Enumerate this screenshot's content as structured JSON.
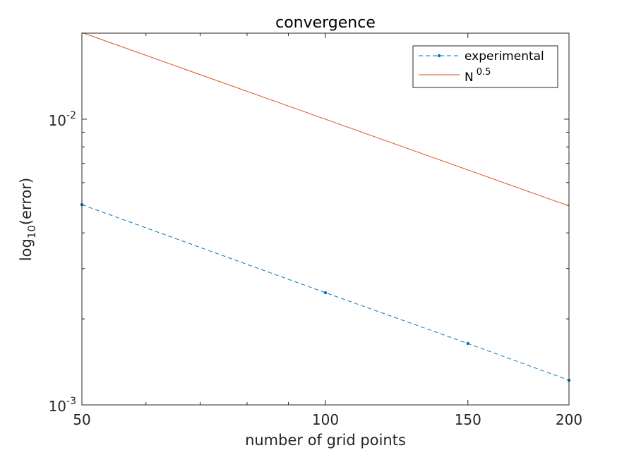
{
  "chart_data": {
    "type": "line",
    "title": "convergence",
    "xlabel": "number of grid points",
    "ylabel_base": "log",
    "ylabel_sub": "10",
    "ylabel_tail": "(error)",
    "xscale": "log",
    "yscale": "log",
    "xlim": [
      50,
      200
    ],
    "ylim": [
      0.001,
      0.02
    ],
    "xticks": [
      50,
      100,
      150,
      200
    ],
    "xtick_labels": [
      "50",
      "100",
      "150",
      "200"
    ],
    "yticks": [
      0.001,
      0.01
    ],
    "ytick_labels": [
      {
        "base": "10",
        "exp": "-3"
      },
      {
        "base": "10",
        "exp": "-2"
      }
    ],
    "grid": false,
    "legend_position": "top-right",
    "series": [
      {
        "name": "experimental",
        "color": "#0072BD",
        "style": "dashed",
        "marker": "dot",
        "x": [
          50,
          100,
          150,
          200
        ],
        "y": [
          0.00502,
          0.00247,
          0.00164,
          0.00122
        ]
      },
      {
        "name": "N",
        "name_sup": "0.5",
        "color": "#D95319",
        "style": "solid",
        "marker": "none",
        "x": [
          50,
          200
        ],
        "y": [
          0.0201,
          0.00497
        ]
      }
    ]
  }
}
